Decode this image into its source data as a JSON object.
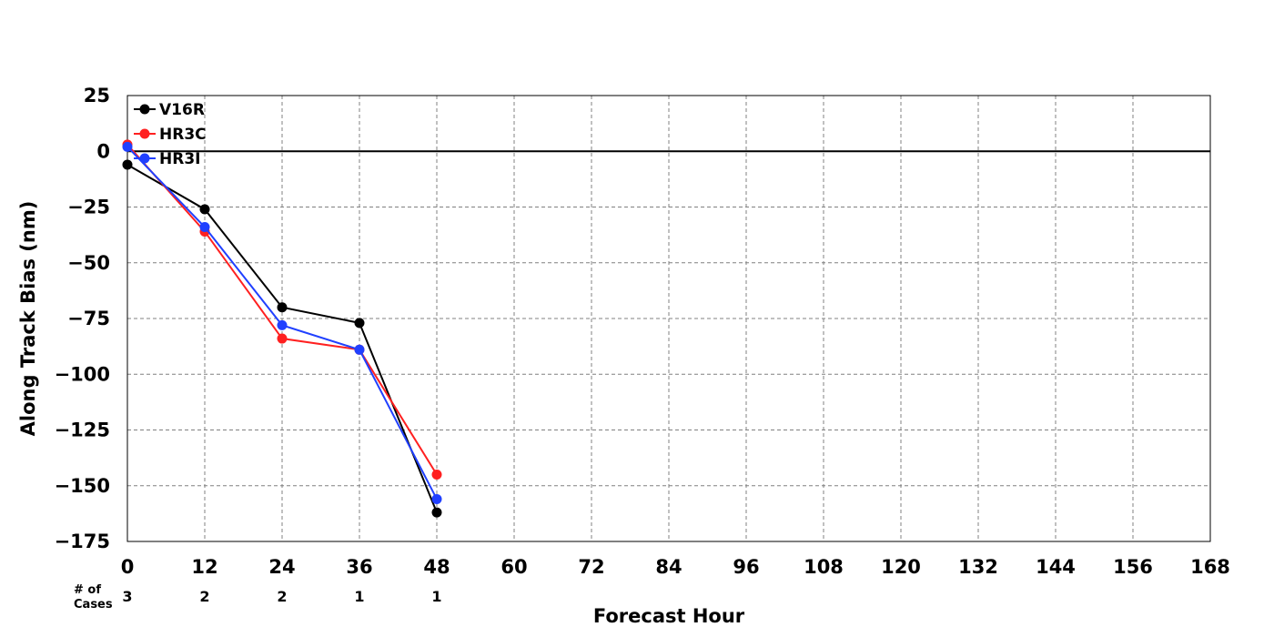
{
  "chart_data": {
    "type": "line",
    "xlabel": "Forecast Hour",
    "ylabel": "Along Track Bias (nm)",
    "xlim": [
      0,
      168
    ],
    "ylim": [
      -175,
      25
    ],
    "xticks": [
      0,
      12,
      24,
      36,
      48,
      60,
      72,
      84,
      96,
      108,
      120,
      132,
      144,
      156,
      168
    ],
    "yticks": [
      25,
      0,
      -25,
      -50,
      -75,
      -100,
      -125,
      -150,
      -175
    ],
    "ytick_labels": [
      "25",
      "0",
      "−25",
      "−50",
      "−75",
      "−100",
      "−125",
      "−150",
      "−175"
    ],
    "grid": true,
    "zero_line": true,
    "legend_placement": "top-left",
    "series": [
      {
        "name": "V16R",
        "color": "#000000",
        "x": [
          0,
          12,
          24,
          36,
          48
        ],
        "y": [
          -6,
          -26,
          -70,
          -77,
          -162
        ]
      },
      {
        "name": "HR3C",
        "color": "#ff2020",
        "x": [
          0,
          12,
          24,
          36,
          48
        ],
        "y": [
          3,
          -36,
          -84,
          -89,
          -145
        ]
      },
      {
        "name": "HR3I",
        "color": "#2040ff",
        "x": [
          0,
          12,
          24,
          36,
          48
        ],
        "y": [
          2,
          -34,
          -78,
          -89,
          -156
        ]
      }
    ],
    "cases": {
      "label_line1": "# of",
      "label_line2": "Cases",
      "x": [
        0,
        12,
        24,
        36,
        48
      ],
      "counts": [
        "3",
        "2",
        "2",
        "1",
        "1"
      ]
    }
  }
}
